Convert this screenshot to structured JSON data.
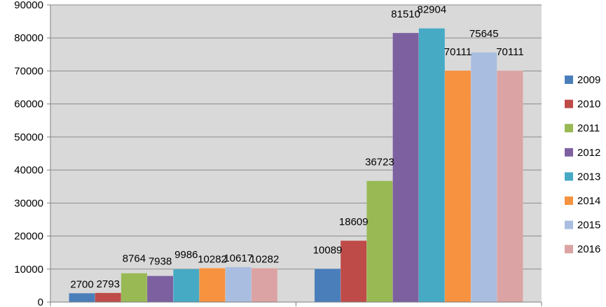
{
  "chart_data": {
    "type": "bar",
    "title": "",
    "xlabel": "",
    "ylabel": "",
    "ylim": [
      0,
      90000
    ],
    "yticks": [
      0,
      10000,
      20000,
      30000,
      40000,
      50000,
      60000,
      70000,
      80000,
      90000
    ],
    "ytick_labels": [
      "0",
      "10000",
      "20000",
      "30000",
      "40000",
      "50000",
      "60000",
      "70000",
      "80000",
      "90000"
    ],
    "grid": true,
    "legend_position": "right",
    "categories": [
      "",
      ""
    ],
    "series": [
      {
        "name": "2009",
        "color": "#4a7ebb",
        "values": [
          2700,
          10089
        ]
      },
      {
        "name": "2010",
        "color": "#be4b48",
        "values": [
          2793,
          18609
        ]
      },
      {
        "name": "2011",
        "color": "#98b954",
        "values": [
          8764,
          36723
        ]
      },
      {
        "name": "2012",
        "color": "#7d60a0",
        "values": [
          7938,
          81510
        ]
      },
      {
        "name": "2013",
        "color": "#46aac5",
        "values": [
          9986,
          82904
        ]
      },
      {
        "name": "2014",
        "color": "#f69240",
        "values": [
          10282,
          70111
        ]
      },
      {
        "name": "2015",
        "color": "#a9bde0",
        "values": [
          10617,
          75645
        ]
      },
      {
        "name": "2016",
        "color": "#dba3a3",
        "values": [
          10282,
          70111
        ]
      }
    ]
  }
}
